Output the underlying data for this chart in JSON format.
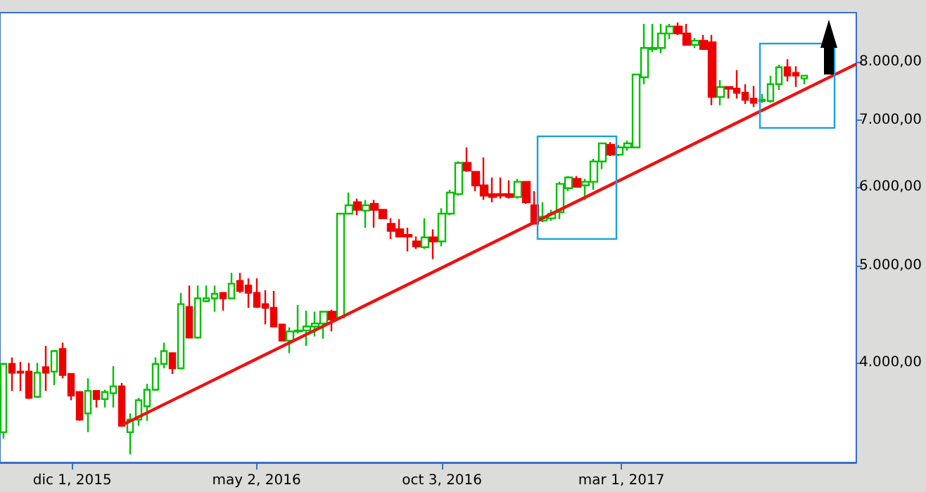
{
  "chart_data": {
    "type": "candlestick",
    "series": [
      {
        "x": [
          "2015-10-05",
          "2015-10-12",
          "2015-10-19",
          "2015-10-26",
          "2015-11-02",
          "2015-11-09",
          "2015-11-16",
          "2015-11-23",
          "2015-11-30",
          "2015-12-07",
          "2015-12-14",
          "2015-12-21",
          "2015-12-28",
          "2016-01-04",
          "2016-01-11",
          "2016-01-18",
          "2016-01-25",
          "2016-02-01",
          "2016-02-08",
          "2016-02-15",
          "2016-02-22",
          "2016-02-29",
          "2016-03-07",
          "2016-03-14",
          "2016-03-21",
          "2016-03-28",
          "2016-04-04",
          "2016-04-11",
          "2016-04-18",
          "2016-04-25",
          "2016-05-02",
          "2016-05-09",
          "2016-05-16",
          "2016-05-23",
          "2016-05-30",
          "2016-06-06",
          "2016-06-13",
          "2016-06-20",
          "2016-06-27",
          "2016-07-04",
          "2016-07-11",
          "2016-07-18",
          "2016-07-25",
          "2016-08-01",
          "2016-08-08",
          "2016-08-15",
          "2016-08-22",
          "2016-08-29",
          "2016-09-05",
          "2016-09-12",
          "2016-09-19",
          "2016-09-26",
          "2016-10-03",
          "2016-10-10",
          "2016-10-17",
          "2016-10-24",
          "2016-10-31",
          "2016-11-07",
          "2016-11-14",
          "2016-11-21",
          "2016-11-28",
          "2016-12-05",
          "2016-12-12",
          "2016-12-19",
          "2016-12-26",
          "2017-01-02",
          "2017-01-09",
          "2017-01-16",
          "2017-01-23",
          "2017-01-30",
          "2017-02-06",
          "2017-02-13",
          "2017-02-20",
          "2017-02-27",
          "2017-03-06",
          "2017-03-13",
          "2017-03-20",
          "2017-03-27",
          "2017-04-03",
          "2017-04-10",
          "2017-04-17",
          "2017-04-24",
          "2017-05-01",
          "2017-05-08",
          "2017-05-15",
          "2017-05-22",
          "2017-05-29",
          "2017-06-05",
          "2017-06-12",
          "2017-06-19",
          "2017-06-26",
          "2017-07-03",
          "2017-07-10",
          "2017-07-17",
          "2017-07-24",
          "2017-07-31"
        ],
        "ohlc": [
          [
            3410,
            4000,
            3360,
            3990
          ],
          [
            3990,
            4050,
            3750,
            3910
          ],
          [
            3920,
            4010,
            3750,
            3910
          ],
          [
            3920,
            4000,
            3680,
            3690
          ],
          [
            3700,
            4000,
            3690,
            3910
          ],
          [
            3960,
            4160,
            3750,
            3910
          ],
          [
            3920,
            4120,
            3800,
            4110
          ],
          [
            4130,
            4190,
            3860,
            3890
          ],
          [
            3900,
            3900,
            3670,
            3710
          ],
          [
            3740,
            3740,
            3500,
            3510
          ],
          [
            3560,
            3860,
            3410,
            3750
          ],
          [
            3750,
            3750,
            3610,
            3680
          ],
          [
            3680,
            3760,
            3610,
            3740
          ],
          [
            3730,
            3970,
            3610,
            3790
          ],
          [
            3790,
            3820,
            3460,
            3460
          ],
          [
            3410,
            3560,
            3240,
            3510
          ],
          [
            3510,
            3690,
            3460,
            3670
          ],
          [
            3620,
            3810,
            3500,
            3760
          ],
          [
            3760,
            4050,
            3750,
            3990
          ],
          [
            3990,
            4190,
            3950,
            4110
          ],
          [
            4090,
            4090,
            3900,
            3950
          ],
          [
            3950,
            4700,
            3940,
            4580
          ],
          [
            4550,
            4780,
            4240,
            4240
          ],
          [
            4240,
            4780,
            4230,
            4640
          ],
          [
            4610,
            4780,
            4600,
            4640
          ],
          [
            4640,
            4780,
            4500,
            4690
          ],
          [
            4700,
            4700,
            4510,
            4640
          ],
          [
            4640,
            4920,
            4640,
            4800
          ],
          [
            4830,
            4920,
            4700,
            4720
          ],
          [
            4780,
            4860,
            4540,
            4700
          ],
          [
            4700,
            4860,
            4540,
            4550
          ],
          [
            4580,
            4730,
            4370,
            4540
          ],
          [
            4540,
            4720,
            4350,
            4350
          ],
          [
            4370,
            4370,
            4210,
            4210
          ],
          [
            4210,
            4340,
            4090,
            4300
          ],
          [
            4300,
            4570,
            4280,
            4310
          ],
          [
            4310,
            4510,
            4160,
            4350
          ],
          [
            4350,
            4500,
            4250,
            4380
          ],
          [
            4380,
            4500,
            4230,
            4500
          ],
          [
            4500,
            4520,
            4300,
            4420
          ],
          [
            4440,
            5640,
            4440,
            5640
          ],
          [
            5640,
            5920,
            5640,
            5750
          ],
          [
            5790,
            5840,
            5620,
            5690
          ],
          [
            5680,
            5820,
            5460,
            5750
          ],
          [
            5770,
            5820,
            5460,
            5690
          ],
          [
            5690,
            5690,
            5580,
            5580
          ],
          [
            5510,
            5580,
            5320,
            5420
          ],
          [
            5440,
            5570,
            5340,
            5350
          ],
          [
            5370,
            5460,
            5170,
            5350
          ],
          [
            5290,
            5350,
            5200,
            5230
          ],
          [
            5220,
            5580,
            5200,
            5340
          ],
          [
            5340,
            5440,
            5080,
            5290
          ],
          [
            5290,
            5710,
            5230,
            5640
          ],
          [
            5640,
            5960,
            5620,
            5920
          ],
          [
            5900,
            6360,
            5880,
            6340
          ],
          [
            6340,
            6570,
            6210,
            6230
          ],
          [
            6210,
            6210,
            5940,
            6020
          ],
          [
            6020,
            6420,
            5820,
            5880
          ],
          [
            5900,
            6130,
            5790,
            5860
          ],
          [
            5900,
            6130,
            5840,
            5880
          ],
          [
            5900,
            6090,
            5840,
            5860
          ],
          [
            5860,
            6110,
            5840,
            6070
          ],
          [
            6070,
            6070,
            5770,
            5790
          ],
          [
            5750,
            5940,
            5510,
            5510
          ],
          [
            5550,
            5790,
            5530,
            5600
          ],
          [
            5580,
            5690,
            5550,
            5640
          ],
          [
            5660,
            6070,
            5570,
            6040
          ],
          [
            5980,
            6150,
            5940,
            6130
          ],
          [
            6110,
            6150,
            6000,
            6000
          ],
          [
            6020,
            6110,
            5820,
            6070
          ],
          [
            6070,
            6400,
            5960,
            6360
          ],
          [
            6360,
            6630,
            6250,
            6630
          ],
          [
            6610,
            6650,
            6440,
            6460
          ],
          [
            6460,
            6610,
            6440,
            6570
          ],
          [
            6570,
            6670,
            6520,
            6630
          ],
          [
            6570,
            7770,
            6570,
            7770
          ],
          [
            7720,
            8730,
            7600,
            8260
          ],
          [
            8240,
            8730,
            8180,
            8260
          ],
          [
            8260,
            8730,
            8160,
            8540
          ],
          [
            8540,
            8730,
            8430,
            8680
          ],
          [
            8680,
            8760,
            8510,
            8540
          ],
          [
            8540,
            8730,
            8320,
            8320
          ],
          [
            8320,
            8450,
            8260,
            8400
          ],
          [
            8400,
            8510,
            8240,
            8240
          ],
          [
            8370,
            8510,
            7240,
            7380
          ],
          [
            7380,
            7670,
            7240,
            7550
          ],
          [
            7550,
            7550,
            7350,
            7520
          ],
          [
            7520,
            7850,
            7350,
            7450
          ],
          [
            7450,
            7600,
            7260,
            7330
          ],
          [
            7350,
            7570,
            7210,
            7280
          ],
          [
            7310,
            7430,
            7280,
            7330
          ],
          [
            7310,
            7750,
            7280,
            7600
          ],
          [
            7600,
            7950,
            7500,
            7900
          ],
          [
            7900,
            8050,
            7650,
            7750
          ],
          [
            7800,
            7920,
            7550,
            7750
          ],
          [
            7700,
            7750,
            7600,
            7750
          ]
        ],
        "colors": [
          "#00c000",
          "#ee0000",
          "#ee0000",
          "#ee0000",
          "#00c000",
          "#ee0000",
          "#00c000",
          "#ee0000",
          "#ee0000",
          "#ee0000",
          "#00c000",
          "#ee0000",
          "#00c000",
          "#00c000",
          "#ee0000",
          "#00c000",
          "#00c000",
          "#00c000",
          "#00c000",
          "#00c000",
          "#ee0000",
          "#00c000",
          "#ee0000",
          "#00c000",
          "#00c000",
          "#00c000",
          "#ee0000",
          "#00c000",
          "#ee0000",
          "#ee0000",
          "#ee0000",
          "#ee0000",
          "#ee0000",
          "#ee0000",
          "#00c000",
          "#00c000",
          "#00c000",
          "#00c000",
          "#00c000",
          "#ee0000",
          "#00c000",
          "#00c000",
          "#ee0000",
          "#00c000",
          "#ee0000",
          "#ee0000",
          "#ee0000",
          "#ee0000",
          "#ee0000",
          "#ee0000",
          "#00c000",
          "#ee0000",
          "#00c000",
          "#00c000",
          "#00c000",
          "#ee0000",
          "#ee0000",
          "#ee0000",
          "#ee0000",
          "#ee0000",
          "#ee0000",
          "#00c000",
          "#ee0000",
          "#ee0000",
          "#00c000",
          "#00c000",
          "#00c000",
          "#00c000",
          "#ee0000",
          "#00c000",
          "#00c000",
          "#00c000",
          "#ee0000",
          "#00c000",
          "#00c000",
          "#00c000",
          "#00c000",
          "#00c000",
          "#00c000",
          "#00c000",
          "#ee0000",
          "#ee0000",
          "#00c000",
          "#ee0000",
          "#ee0000",
          "#00c000",
          "#ee0000",
          "#ee0000",
          "#ee0000",
          "#ee0000",
          "#00c000",
          "#00c000",
          "#00c000",
          "#ee0000",
          "#ee0000",
          "#00c000"
        ]
      },
      {
        "type": "line",
        "x": [
          "2016-01-10",
          "2017-09-12"
        ],
        "values": [
          3460,
          7960
        ],
        "color": "#ee1111"
      }
    ],
    "xlim": [
      "2015-10-02",
      "2017-09-12"
    ],
    "xticks": [
      {
        "value": "2015-12-01",
        "label": "dic 1, 2015"
      },
      {
        "value": "2016-05-02",
        "label": "may 2, 2016"
      },
      {
        "value": "2016-10-03",
        "label": "oct 3, 2016"
      },
      {
        "value": "2017-03-01",
        "label": "mar 1, 2017"
      }
    ],
    "ylim": [
      3180,
      8960
    ],
    "yticks": [
      {
        "value": 4000,
        "label": "4.000,00"
      },
      {
        "value": 5000,
        "label": "5.000,00"
      },
      {
        "value": 6000,
        "label": "6.000,00"
      },
      {
        "value": 7000,
        "label": "7.000,00"
      },
      {
        "value": 8000,
        "label": "8.000,00"
      }
    ],
    "log": "y",
    "marker": "none"
  }
}
